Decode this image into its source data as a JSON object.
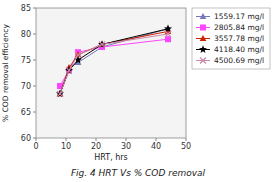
{
  "chart_data": {
    "type": "line",
    "title": "Fig. 4 HRT Vs % COD removal",
    "xlabel": "HRT, hrs",
    "ylabel": "% COD removal efficiency",
    "xlim": [
      0,
      50
    ],
    "ylim": [
      60,
      85
    ],
    "xticks": [
      0,
      10,
      20,
      30,
      40,
      50
    ],
    "yticks": [
      60,
      65,
      70,
      75,
      80,
      85
    ],
    "grid": false,
    "legend": "right",
    "x": [
      8,
      11,
      14,
      22,
      44
    ],
    "series": [
      {
        "name": "1559.17 mg/l",
        "color": "#7777bb",
        "marker": "triangle",
        "values": [
          68.5,
          73.5,
          74.5,
          77.5,
          81.0
        ]
      },
      {
        "name": "2805.84 mg/l",
        "color": "#ff44ff",
        "marker": "square",
        "values": [
          70.0,
          73.0,
          76.5,
          77.5,
          79.0
        ]
      },
      {
        "name": "3557.78 mg/l",
        "color": "#cc2200",
        "marker": "triangle",
        "values": [
          68.5,
          73.5,
          76.0,
          78.0,
          80.5
        ]
      },
      {
        "name": "4118.40 mg/l",
        "color": "#000000",
        "marker": "star",
        "values": [
          68.5,
          73.0,
          75.0,
          78.0,
          81.0
        ]
      },
      {
        "name": "4500.69 mg/l",
        "color": "#cc88aa",
        "marker": "x",
        "values": [
          68.5,
          73.0,
          76.0,
          78.0,
          80.0
        ]
      }
    ]
  }
}
